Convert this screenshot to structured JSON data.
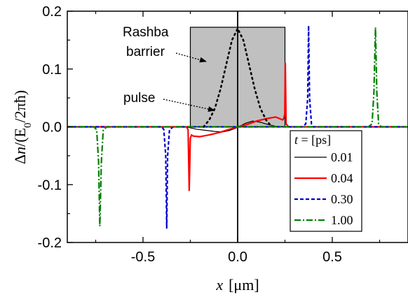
{
  "chart_data": {
    "type": "line",
    "xlabel_symbol": "x",
    "xlabel_unit": "[μm]",
    "ylabel_delta": "Δ",
    "ylabel_symbol": "n",
    "ylabel_rest": "/(E",
    "ylabel_sub": "0",
    "ylabel_end": "/2πħ)",
    "xlim": [
      -0.9,
      0.9
    ],
    "ylim": [
      -0.2,
      0.2
    ],
    "x_ticks": [
      -0.5,
      0.0,
      0.5
    ],
    "x_tick_labels": [
      "-0.5",
      "0.0",
      "0.5"
    ],
    "y_ticks": [
      -0.2,
      -0.1,
      0.0,
      0.1,
      0.2
    ],
    "y_tick_labels": [
      "-0.2",
      "-0.1",
      "0.0",
      "0.1",
      "0.2"
    ],
    "barrier": {
      "x_start": -0.25,
      "x_end": 0.25,
      "color": "#c0c0c0"
    },
    "annotations": [
      {
        "lines": [
          "Rashba",
          "barrier"
        ]
      },
      {
        "lines": [
          "pulse"
        ]
      }
    ],
    "legend": {
      "title_symbol": "t",
      "title_rest": " = [ps]",
      "placement": "bottom-right"
    },
    "series": [
      {
        "name": "0.01",
        "color": "#000000",
        "dash": "solid",
        "width": 1.2,
        "x": [
          -0.9,
          -0.3,
          -0.26,
          -0.22,
          -0.17,
          -0.12,
          -0.08,
          -0.04,
          0.0,
          0.04,
          0.08,
          0.12,
          0.16,
          0.2,
          0.25,
          0.3,
          0.9
        ],
        "y": [
          0.0,
          0.0,
          -0.001,
          -0.004,
          -0.006,
          -0.008,
          -0.009,
          -0.006,
          -0.001,
          0.006,
          0.01,
          0.008,
          0.004,
          0.001,
          0.0,
          0.0,
          0.0
        ]
      },
      {
        "name": "0.04",
        "color": "#ff0000",
        "dash": "solid",
        "width": 2.2,
        "x": [
          -0.9,
          -0.27,
          -0.262,
          -0.256,
          -0.25,
          -0.244,
          -0.235,
          -0.2,
          -0.15,
          -0.1,
          -0.05,
          0.0,
          0.05,
          0.1,
          0.15,
          0.2,
          0.238,
          0.244,
          0.249,
          0.252,
          0.256,
          0.27,
          0.9
        ],
        "y": [
          0.0,
          0.0,
          -0.005,
          -0.11,
          -0.02,
          -0.014,
          -0.016,
          -0.017,
          -0.014,
          -0.01,
          -0.005,
          0.0,
          0.004,
          0.01,
          0.014,
          0.017,
          0.012,
          0.015,
          0.022,
          0.11,
          0.005,
          0.0,
          0.0
        ]
      },
      {
        "name": "0.30",
        "color": "#0000cc",
        "dash": "short-dash",
        "width": 2.2,
        "x": [
          -0.9,
          -0.4,
          -0.39,
          -0.38,
          -0.375,
          -0.37,
          -0.36,
          -0.34,
          0.34,
          0.36,
          0.37,
          0.375,
          0.38,
          0.39,
          0.4,
          0.9
        ],
        "y": [
          0.0,
          0.0,
          -0.005,
          -0.05,
          -0.175,
          -0.05,
          -0.005,
          0.0,
          0.0,
          0.005,
          0.05,
          0.175,
          0.05,
          0.005,
          0.0,
          0.0
        ]
      },
      {
        "name": "1.00",
        "color": "#008000",
        "dash": "dash-dot",
        "width": 2.2,
        "x": [
          -0.9,
          -0.76,
          -0.745,
          -0.735,
          -0.728,
          -0.72,
          -0.71,
          -0.69,
          0.69,
          0.71,
          0.72,
          0.728,
          0.735,
          0.745,
          0.76,
          0.9
        ],
        "y": [
          0.0,
          0.0,
          -0.005,
          -0.06,
          -0.172,
          -0.06,
          -0.005,
          0.0,
          0.0,
          0.005,
          0.06,
          0.172,
          0.06,
          0.005,
          0.0,
          0.0
        ]
      },
      {
        "name": "pulse",
        "color": "#000000",
        "dash": "dotted",
        "width": 2.6,
        "x": [
          -0.18,
          -0.15,
          -0.12,
          -0.09,
          -0.06,
          -0.03,
          0.0,
          0.03,
          0.06,
          0.09,
          0.12,
          0.15,
          0.18
        ],
        "y": [
          0.0,
          0.012,
          0.032,
          0.066,
          0.108,
          0.15,
          0.17,
          0.15,
          0.108,
          0.066,
          0.032,
          0.012,
          0.0
        ]
      }
    ]
  }
}
